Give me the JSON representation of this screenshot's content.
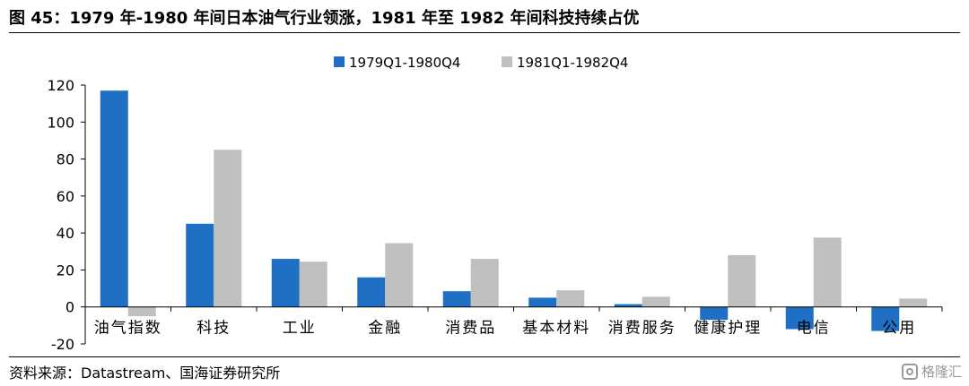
{
  "header": {
    "title": "图 45：1979 年-1980 年间日本油气行业领涨，1981 年至 1982 年间科技持续占优"
  },
  "footer": {
    "source": "资料来源：Datastream、国海证券研究所",
    "watermark": "格隆汇"
  },
  "colors": {
    "series1": "#1F6FC5",
    "series2": "#BFBFBF"
  },
  "chart_data": {
    "type": "bar",
    "title": "",
    "xlabel": "",
    "ylabel": "",
    "ylim": [
      -20,
      120
    ],
    "yticks": [
      -20,
      0,
      20,
      40,
      60,
      80,
      100,
      120
    ],
    "legend_position": "top-center",
    "grid": false,
    "categories": [
      "油气指数",
      "科技",
      "工业",
      "金融",
      "消费品",
      "基本材料",
      "消费服务",
      "健康护理",
      "电信",
      "公用"
    ],
    "series": [
      {
        "name": "1979Q1-1980Q4",
        "color": "#1F6FC5",
        "values": [
          117,
          45,
          26,
          16,
          8.5,
          5,
          1.5,
          -7,
          -12,
          -13
        ]
      },
      {
        "name": "1981Q1-1982Q4",
        "color": "#BFBFBF",
        "values": [
          -5,
          85,
          24.5,
          34.5,
          26,
          9,
          5.5,
          28,
          37.5,
          4.5
        ]
      }
    ]
  }
}
